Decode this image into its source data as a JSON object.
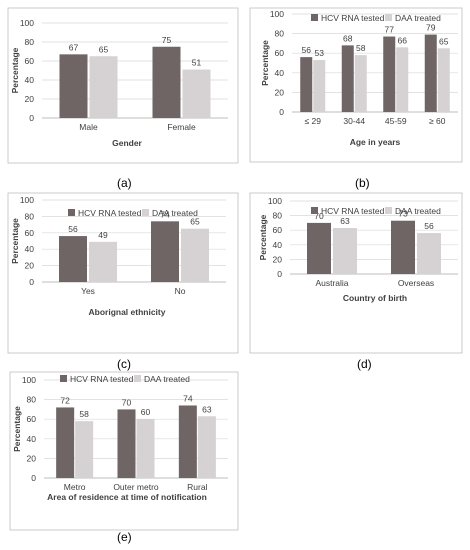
{
  "legend": {
    "series": [
      "HCV RNA tested",
      "DAA treated"
    ]
  },
  "colors": {
    "HCV RNA tested": "#6f6565",
    "DAA treated": "#d6d1d2",
    "frame": "#bfbfbf",
    "grid": "#d9d9d9",
    "text": "#404040"
  },
  "chart_data": [
    {
      "panel": "(a)",
      "type": "bar",
      "xlabel": "Gender",
      "ylabel": "Percentage",
      "ylim": [
        0,
        100
      ],
      "yticks": [
        0,
        20,
        40,
        60,
        80,
        100
      ],
      "categories": [
        "Male",
        "Female"
      ],
      "series": [
        {
          "name": "HCV RNA tested",
          "values": [
            67,
            75
          ]
        },
        {
          "name": "DAA treated",
          "values": [
            65,
            51
          ]
        }
      ],
      "legend_shown": false
    },
    {
      "panel": "(b)",
      "type": "bar",
      "xlabel": "Age in years",
      "ylabel": "Percentage",
      "ylim": [
        0,
        100
      ],
      "yticks": [
        0,
        20,
        40,
        60,
        80,
        100
      ],
      "categories": [
        "≤ 29",
        "30-44",
        "45-59",
        "≥ 60"
      ],
      "series": [
        {
          "name": "HCV RNA tested",
          "values": [
            56,
            68,
            77,
            79
          ]
        },
        {
          "name": "DAA treated",
          "values": [
            53,
            58,
            66,
            65
          ]
        }
      ],
      "legend_shown": true
    },
    {
      "panel": "(c)",
      "type": "bar",
      "xlabel": "Aborignal ethnicity",
      "ylabel": "Percentage",
      "ylim": [
        0,
        100
      ],
      "yticks": [
        0,
        20,
        40,
        60,
        80,
        100
      ],
      "categories": [
        "Yes",
        "No"
      ],
      "series": [
        {
          "name": "HCV RNA tested",
          "values": [
            56,
            74
          ]
        },
        {
          "name": "DAA treated",
          "values": [
            49,
            65
          ]
        }
      ],
      "legend_shown": true
    },
    {
      "panel": "(d)",
      "type": "bar",
      "xlabel": "Country of birth",
      "ylabel": "Percentage",
      "ylim": [
        0,
        100
      ],
      "yticks": [
        0,
        20,
        40,
        60,
        80,
        100
      ],
      "categories": [
        "Australia",
        "Overseas"
      ],
      "series": [
        {
          "name": "HCV RNA tested",
          "values": [
            70,
            73
          ]
        },
        {
          "name": "DAA treated",
          "values": [
            63,
            56
          ]
        }
      ],
      "legend_shown": true
    },
    {
      "panel": "(e)",
      "type": "bar",
      "xlabel": "Area of residence at time of notification",
      "ylabel": "Percentage",
      "ylim": [
        0,
        100
      ],
      "yticks": [
        0,
        20,
        40,
        60,
        80,
        100
      ],
      "categories": [
        "Metro",
        "Outer metro",
        "Rural"
      ],
      "series": [
        {
          "name": "HCV RNA tested",
          "values": [
            72,
            70,
            74
          ]
        },
        {
          "name": "DAA treated",
          "values": [
            58,
            60,
            63
          ]
        }
      ],
      "legend_shown": true
    }
  ]
}
